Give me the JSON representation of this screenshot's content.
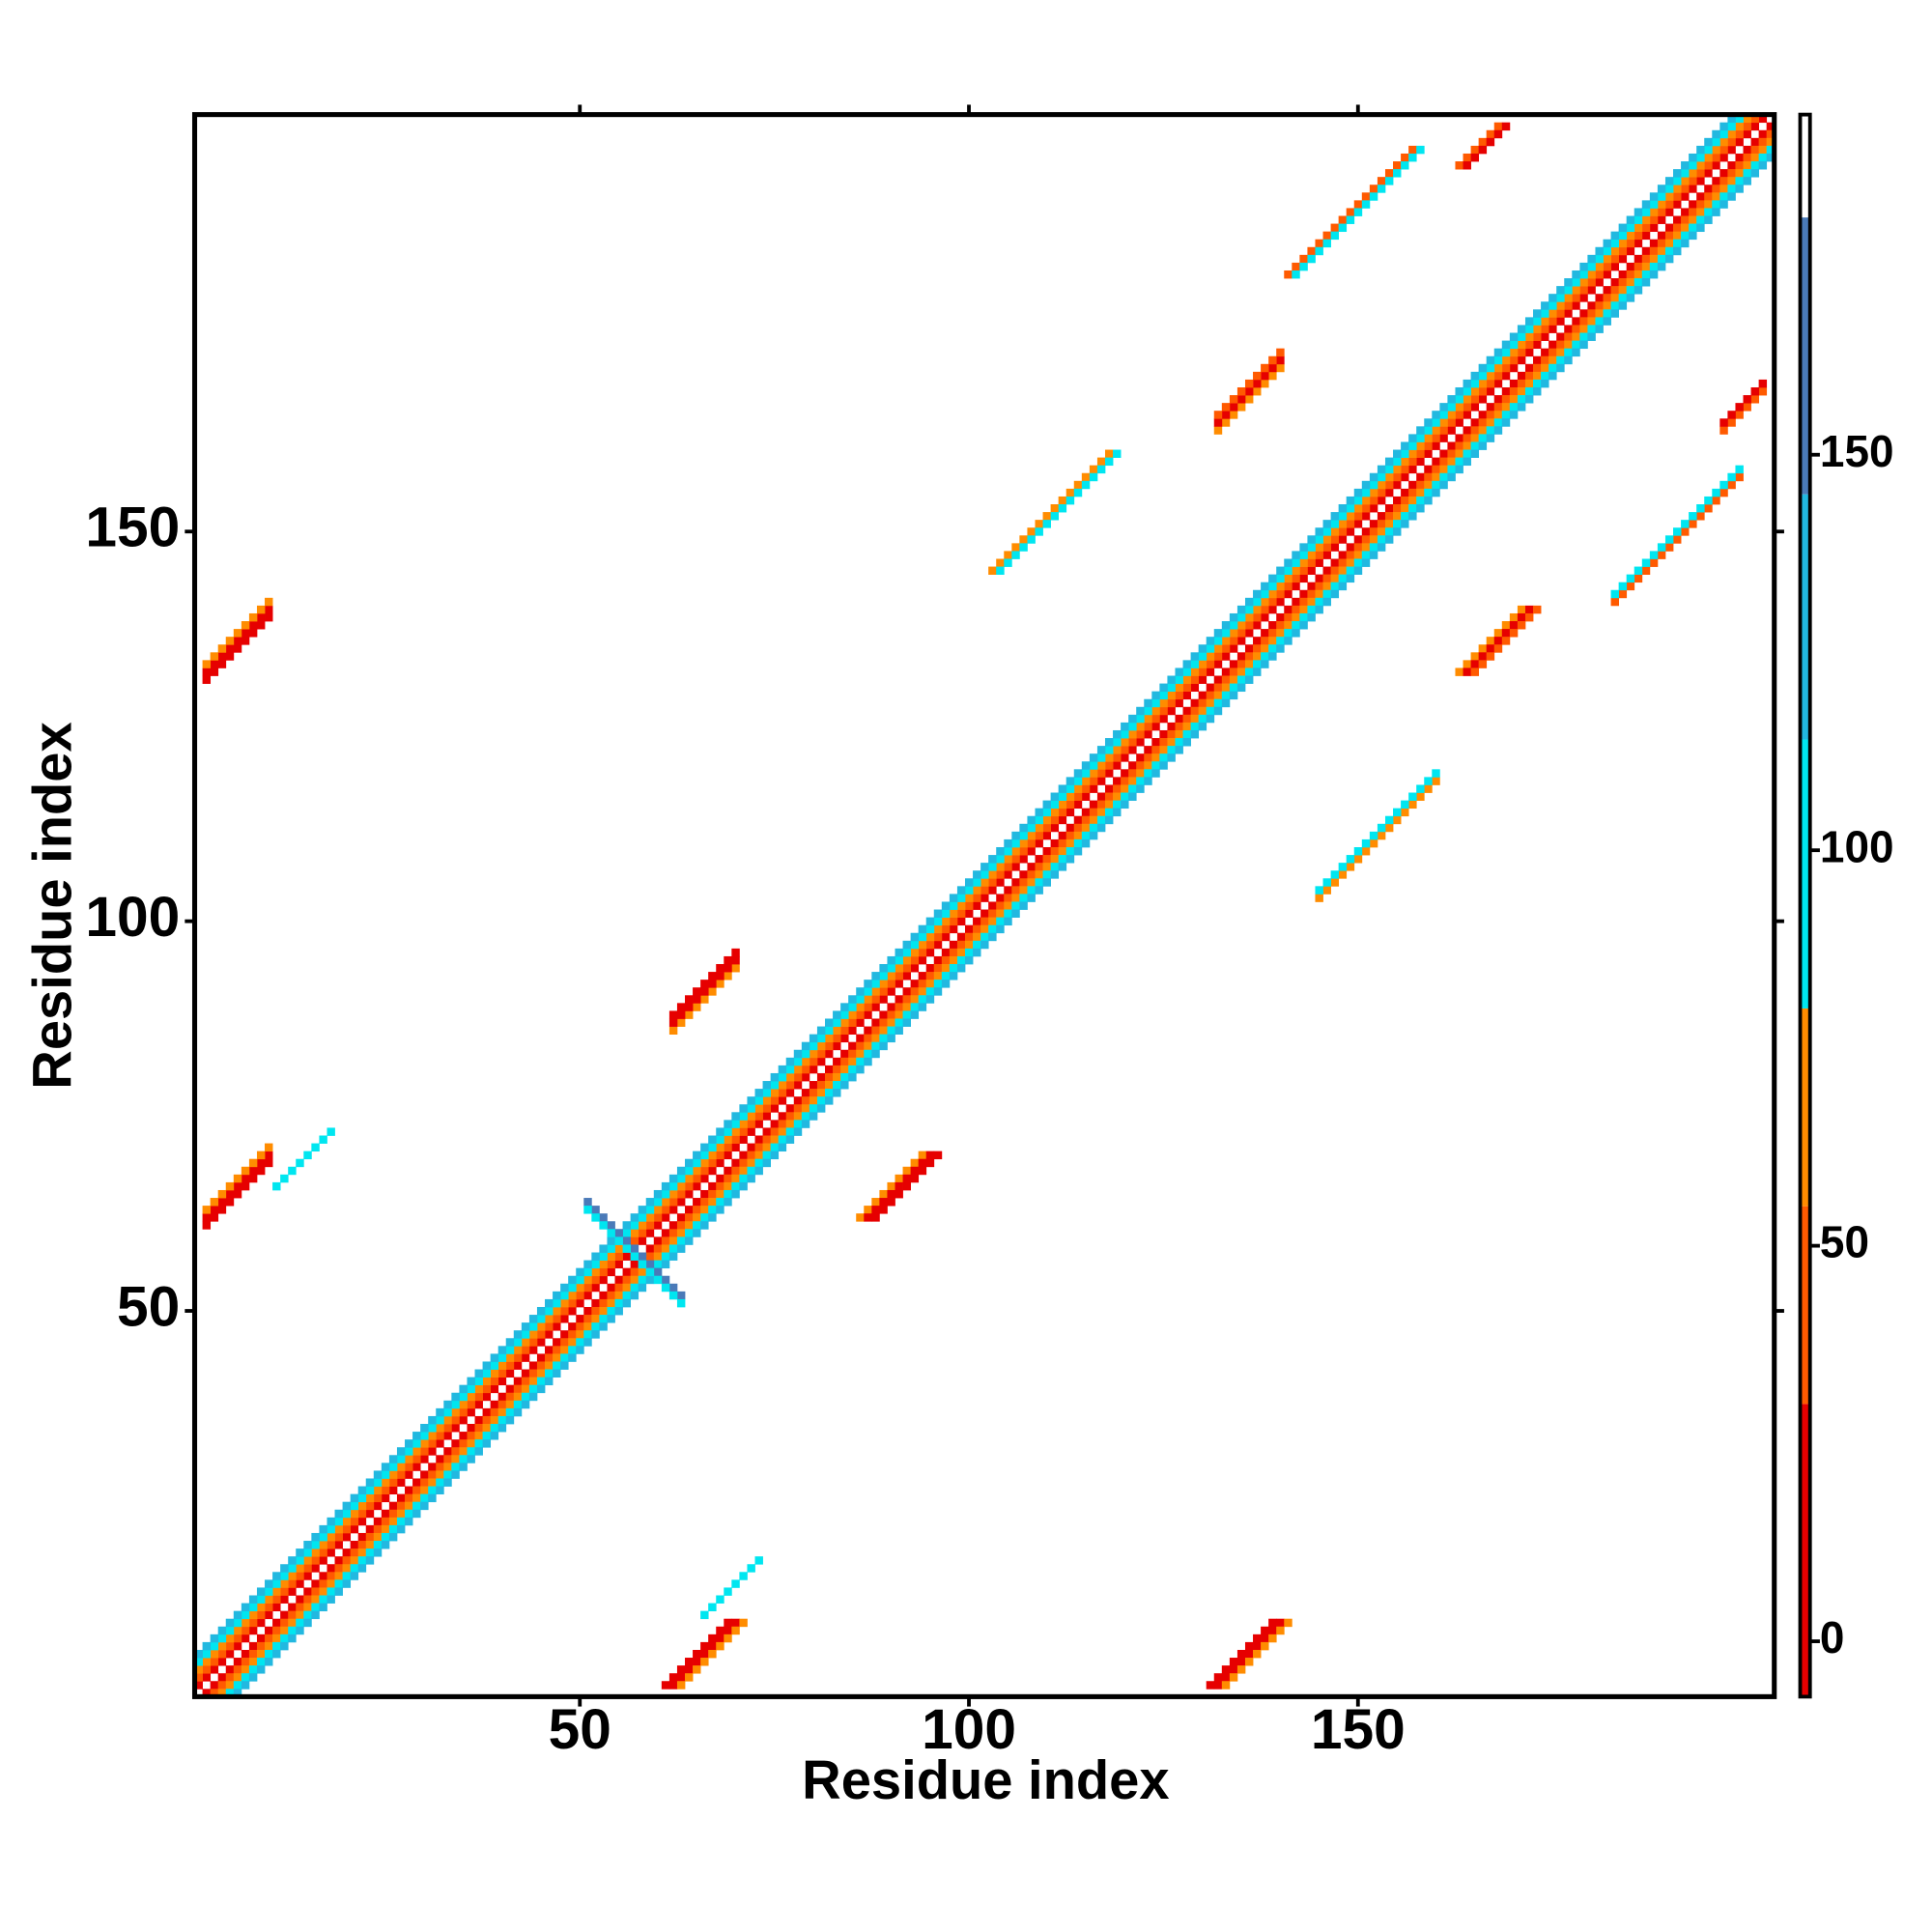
{
  "chart_data": {
    "type": "heatmap",
    "xlabel": "Residue index",
    "ylabel": "Residue index",
    "xlim": [
      0.5,
      203.5
    ],
    "ylim": [
      0.5,
      203.5
    ],
    "xticks": [
      50,
      100,
      150
    ],
    "yticks": [
      50,
      100,
      150
    ],
    "colorbar": {
      "clim": [
        -7,
        193
      ],
      "ticks": [
        0,
        50,
        100,
        150
      ],
      "bounds": [
        -7,
        30,
        55,
        80,
        114,
        145,
        180,
        193
      ],
      "colors": [
        "#e60000",
        "#ff5a00",
        "#ff8c00",
        "#00e6f0",
        "#22b8e0",
        "#4a7ab8",
        "#ffffff"
      ]
    },
    "stripes": [
      {
        "x": 1,
        "y": 1,
        "n": 203,
        "dir": 1,
        "value": 190
      },
      {
        "x": 1,
        "y": 2,
        "n": 202,
        "dir": 1,
        "value": 10
      },
      {
        "x": 2,
        "y": 1,
        "n": 202,
        "dir": 1,
        "value": 10
      },
      {
        "x": 1,
        "y": 3,
        "n": 201,
        "dir": 1,
        "value": 40
      },
      {
        "x": 3,
        "y": 1,
        "n": 201,
        "dir": 1,
        "value": 40
      },
      {
        "x": 1,
        "y": 4,
        "n": 200,
        "dir": 1,
        "value": 65
      },
      {
        "x": 4,
        "y": 1,
        "n": 200,
        "dir": 1,
        "value": 65
      },
      {
        "x": 1,
        "y": 5,
        "n": 199,
        "dir": 1,
        "value": 95
      },
      {
        "x": 5,
        "y": 1,
        "n": 199,
        "dir": 1,
        "value": 95
      },
      {
        "x": 1,
        "y": 6,
        "n": 198,
        "dir": 1,
        "value": 120
      },
      {
        "x": 6,
        "y": 1,
        "n": 198,
        "dir": 1,
        "value": 120
      },
      {
        "x": 61,
        "y": 2,
        "n": 9,
        "dir": 1,
        "value": 5
      },
      {
        "x": 62,
        "y": 2,
        "n": 9,
        "dir": 1,
        "value": 5
      },
      {
        "x": 63,
        "y": 2,
        "n": 9,
        "dir": 1,
        "value": 60
      },
      {
        "x": 2,
        "y": 61,
        "n": 9,
        "dir": 1,
        "value": 5
      },
      {
        "x": 2,
        "y": 62,
        "n": 9,
        "dir": 1,
        "value": 5
      },
      {
        "x": 2,
        "y": 63,
        "n": 9,
        "dir": 1,
        "value": 60
      },
      {
        "x": 131,
        "y": 2,
        "n": 9,
        "dir": 1,
        "value": 5
      },
      {
        "x": 132,
        "y": 2,
        "n": 9,
        "dir": 1,
        "value": 5
      },
      {
        "x": 133,
        "y": 2,
        "n": 9,
        "dir": 1,
        "value": 60
      },
      {
        "x": 2,
        "y": 131,
        "n": 9,
        "dir": 1,
        "value": 5
      },
      {
        "x": 2,
        "y": 132,
        "n": 9,
        "dir": 1,
        "value": 5
      },
      {
        "x": 2,
        "y": 133,
        "n": 9,
        "dir": 1,
        "value": 60
      },
      {
        "x": 86,
        "y": 62,
        "n": 9,
        "dir": 1,
        "value": 60
      },
      {
        "x": 87,
        "y": 62,
        "n": 9,
        "dir": 1,
        "value": 5
      },
      {
        "x": 88,
        "y": 62,
        "n": 9,
        "dir": 1,
        "value": 5
      },
      {
        "x": 62,
        "y": 86,
        "n": 9,
        "dir": 1,
        "value": 60
      },
      {
        "x": 62,
        "y": 87,
        "n": 9,
        "dir": 1,
        "value": 5
      },
      {
        "x": 62,
        "y": 88,
        "n": 9,
        "dir": 1,
        "value": 5
      },
      {
        "x": 163,
        "y": 132,
        "n": 9,
        "dir": 1,
        "value": 60
      },
      {
        "x": 164,
        "y": 132,
        "n": 9,
        "dir": 1,
        "value": 5
      },
      {
        "x": 165,
        "y": 132,
        "n": 9,
        "dir": 1,
        "value": 40
      },
      {
        "x": 132,
        "y": 163,
        "n": 9,
        "dir": 1,
        "value": 60
      },
      {
        "x": 132,
        "y": 164,
        "n": 9,
        "dir": 1,
        "value": 5
      },
      {
        "x": 132,
        "y": 165,
        "n": 9,
        "dir": 1,
        "value": 40
      },
      {
        "x": 163,
        "y": 197,
        "n": 6,
        "dir": 1,
        "value": 40
      },
      {
        "x": 164,
        "y": 197,
        "n": 6,
        "dir": 1,
        "value": 5
      },
      {
        "x": 197,
        "y": 163,
        "n": 6,
        "dir": 1,
        "value": 40
      },
      {
        "x": 197,
        "y": 164,
        "n": 6,
        "dir": 1,
        "value": 5
      },
      {
        "x": 51,
        "y": 64,
        "n": 13,
        "dir": -1,
        "value": 150
      },
      {
        "x": 51,
        "y": 63,
        "n": 13,
        "dir": -1,
        "value": 100
      },
      {
        "x": 103,
        "y": 145,
        "n": 16,
        "dir": 1,
        "value": 70
      },
      {
        "x": 104,
        "y": 145,
        "n": 16,
        "dir": 1,
        "value": 100
      },
      {
        "x": 145,
        "y": 103,
        "n": 16,
        "dir": 1,
        "value": 70
      },
      {
        "x": 145,
        "y": 104,
        "n": 16,
        "dir": 1,
        "value": 100
      },
      {
        "x": 141,
        "y": 183,
        "n": 17,
        "dir": 1,
        "value": 40
      },
      {
        "x": 142,
        "y": 183,
        "n": 17,
        "dir": 1,
        "value": 100
      },
      {
        "x": 183,
        "y": 141,
        "n": 17,
        "dir": 1,
        "value": 40
      },
      {
        "x": 183,
        "y": 142,
        "n": 17,
        "dir": 1,
        "value": 100
      },
      {
        "x": 66,
        "y": 11,
        "n": 8,
        "dir": 1,
        "value": 100
      },
      {
        "x": 11,
        "y": 66,
        "n": 8,
        "dir": 1,
        "value": 100
      }
    ]
  }
}
